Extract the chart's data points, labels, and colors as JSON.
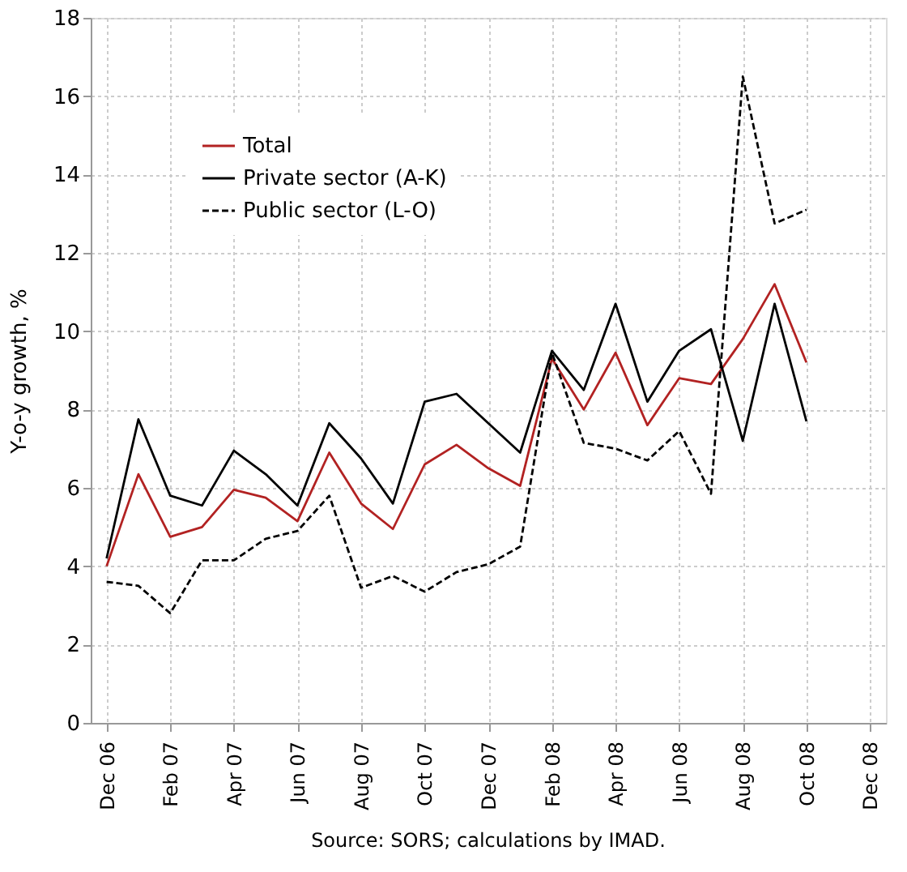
{
  "chart_data": {
    "type": "line",
    "ylabel": "Y-o-y growth, %",
    "categories": [
      "Dec 06",
      null,
      "Feb 07",
      null,
      "Apr 07",
      null,
      "Jun 07",
      null,
      "Aug 07",
      null,
      "Oct 07",
      null,
      "Dec 07",
      null,
      "Feb 08",
      null,
      "Apr 08",
      null,
      "Jun 08",
      null,
      "Aug 08",
      null,
      "Oct 08",
      null,
      "Dec 08"
    ],
    "series": [
      {
        "name": "Total",
        "color": "#b22222",
        "line_style": "solid",
        "values": [
          4.0,
          6.35,
          4.75,
          5.0,
          5.95,
          5.75,
          5.15,
          6.9,
          5.6,
          4.95,
          6.6,
          7.1,
          6.5,
          6.05,
          9.3,
          8.0,
          9.45,
          7.6,
          8.8,
          8.65,
          9.8,
          11.2,
          9.2,
          null,
          null
        ]
      },
      {
        "name": "Private sector (A-K)",
        "color": "#000000",
        "line_style": "solid",
        "values": [
          4.2,
          7.75,
          5.8,
          5.55,
          6.95,
          6.35,
          5.55,
          7.65,
          6.75,
          5.6,
          8.2,
          8.4,
          7.65,
          6.9,
          9.5,
          8.5,
          10.7,
          8.2,
          9.5,
          10.05,
          7.2,
          10.7,
          7.7,
          null,
          null
        ]
      },
      {
        "name": "Public sector (L-O)",
        "color": "#000000",
        "line_style": "dashed",
        "values": [
          3.6,
          3.5,
          2.8,
          4.15,
          4.15,
          4.7,
          4.9,
          5.8,
          3.45,
          3.75,
          3.35,
          3.85,
          4.05,
          4.5,
          9.45,
          7.15,
          7.0,
          6.7,
          7.45,
          5.85,
          16.5,
          12.75,
          13.1,
          null,
          null
        ]
      }
    ],
    "ylim": [
      0,
      18
    ],
    "yticks": [
      0,
      2,
      4,
      6,
      8,
      10,
      12,
      14,
      16,
      18
    ],
    "grid": true,
    "legend": "top left",
    "marker": "none",
    "annotations": [
      "Source: SORS; calculations by IMAD."
    ]
  }
}
